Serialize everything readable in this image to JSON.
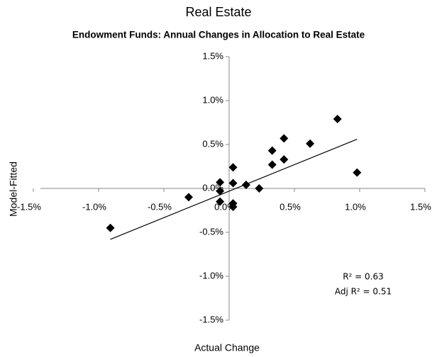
{
  "chart_data": {
    "type": "scatter",
    "title": "Real Estate",
    "subtitle": "Endowment Funds: Annual Changes in Allocation to Real Estate",
    "x_label": "Actual Change",
    "y_label": "Model-Fitted",
    "color": "#000000",
    "xlim": [
      -1.5,
      1.5
    ],
    "ylim": [
      -1.5,
      1.5
    ],
    "xticks": [
      {
        "value": -1.5,
        "label": "-1.5%"
      },
      {
        "value": -1.0,
        "label": "-1.0%"
      },
      {
        "value": -0.5,
        "label": "-0.5%"
      },
      {
        "value": 0,
        "label": "0.0%"
      },
      {
        "value": 0.5,
        "label": "0.5%"
      },
      {
        "value": 1.0,
        "label": "1.0%"
      },
      {
        "value": 1.5,
        "label": "1.5%"
      }
    ],
    "yticks": [
      {
        "value": 1.5,
        "label": "1.5%"
      },
      {
        "value": 1.0,
        "label": "1.0%"
      },
      {
        "value": 0.5,
        "label": "0.5%"
      },
      {
        "value": 0,
        "label": "0.0%"
      },
      {
        "value": -0.5,
        "label": "-0.5%"
      },
      {
        "value": -1.0,
        "label": "-1.0%"
      },
      {
        "value": -1.5,
        "label": "-1.5%"
      }
    ],
    "x": [
      -0.91,
      -0.31,
      -0.07,
      -0.07,
      -0.07,
      0.03,
      0.03,
      0.03,
      0.03,
      0.13,
      0.23,
      0.33,
      0.33,
      0.42,
      0.42,
      0.62,
      0.83,
      0.98
    ],
    "values": [
      -0.45,
      -0.1,
      0.07,
      -0.03,
      -0.15,
      0.24,
      0.06,
      -0.17,
      -0.21,
      0.04,
      0.0,
      0.27,
      0.43,
      0.33,
      0.57,
      0.51,
      0.79,
      0.18
    ],
    "trendline": {
      "x": [
        -0.91,
        0.98
      ],
      "values": [
        -0.58,
        0.56
      ]
    },
    "annotations": [
      "R² = 0.63",
      "Adj R² = 0.51"
    ]
  }
}
